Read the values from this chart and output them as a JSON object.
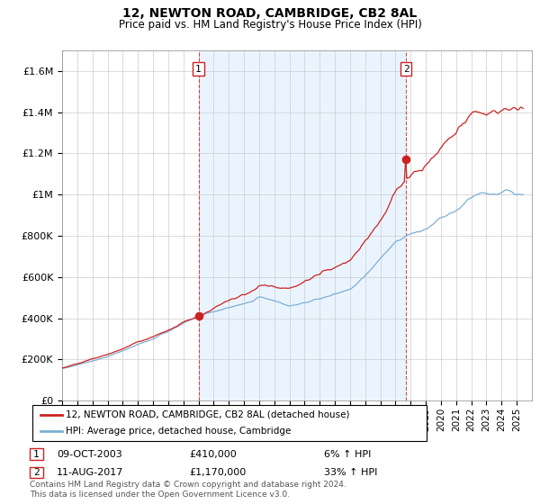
{
  "title": "12, NEWTON ROAD, CAMBRIDGE, CB2 8AL",
  "subtitle": "Price paid vs. HM Land Registry's House Price Index (HPI)",
  "ylim": [
    0,
    1700000
  ],
  "yticks": [
    0,
    200000,
    400000,
    600000,
    800000,
    1000000,
    1200000,
    1400000,
    1600000
  ],
  "ytick_labels": [
    "£0",
    "£200K",
    "£400K",
    "£600K",
    "£800K",
    "£1M",
    "£1.2M",
    "£1.4M",
    "£1.6M"
  ],
  "hpi_color": "#7bafd4",
  "price_color": "#cc2222",
  "vline_color": "#cc2222",
  "shade_color": "#ddeeff",
  "transaction1": {
    "date": "09-OCT-2003",
    "price": 410000,
    "pct": "6%",
    "label": "1",
    "year": 2004.0
  },
  "transaction2": {
    "date": "11-AUG-2017",
    "price": 1170000,
    "pct": "33%",
    "label": "2",
    "year": 2017.7
  },
  "legend_line1": "12, NEWTON ROAD, CAMBRIDGE, CB2 8AL (detached house)",
  "legend_line2": "HPI: Average price, detached house, Cambridge",
  "footnote1": "Contains HM Land Registry data © Crown copyright and database right 2024.",
  "footnote2": "This data is licensed under the Open Government Licence v3.0.",
  "table_row1": [
    "1",
    "09-OCT-2003",
    "£410,000",
    "6% ↑ HPI"
  ],
  "table_row2": [
    "2",
    "11-AUG-2017",
    "£1,170,000",
    "33% ↑ HPI"
  ]
}
